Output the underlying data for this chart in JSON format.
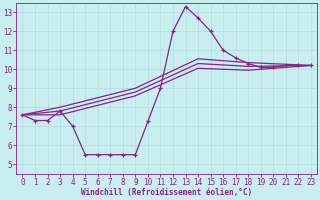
{
  "xlabel": "Windchill (Refroidissement éolien,°C)",
  "bg_color": "#c8eef0",
  "grid_color": "#b0dde0",
  "line_color": "#882288",
  "xlim": [
    -0.5,
    23.5
  ],
  "ylim": [
    4.5,
    13.5
  ],
  "xticks": [
    0,
    1,
    2,
    3,
    4,
    5,
    6,
    7,
    8,
    9,
    10,
    11,
    12,
    13,
    14,
    15,
    16,
    17,
    18,
    19,
    20,
    21,
    22,
    23
  ],
  "yticks": [
    5,
    6,
    7,
    8,
    9,
    10,
    11,
    12,
    13
  ],
  "line1_x": [
    0,
    1,
    2,
    3,
    4,
    5,
    6,
    7,
    8,
    9,
    10,
    11,
    12,
    13,
    14,
    15,
    16,
    17,
    18,
    19,
    20,
    21,
    22,
    23
  ],
  "line1_y": [
    7.6,
    7.3,
    7.3,
    7.8,
    7.0,
    5.5,
    5.5,
    5.5,
    5.5,
    5.5,
    7.25,
    9.0,
    12.0,
    13.3,
    12.7,
    12.0,
    11.0,
    10.6,
    10.3,
    10.1,
    10.1,
    10.2,
    10.2,
    10.2
  ],
  "line2_x": [
    0,
    3,
    9,
    14,
    18,
    23
  ],
  "line2_y": [
    7.6,
    8.0,
    9.0,
    10.55,
    10.35,
    10.2
  ],
  "line3_x": [
    0,
    3,
    9,
    14,
    18,
    23
  ],
  "line3_y": [
    7.6,
    7.8,
    8.8,
    10.3,
    10.15,
    10.2
  ],
  "line4_x": [
    0,
    3,
    9,
    14,
    18,
    23
  ],
  "line4_y": [
    7.6,
    7.6,
    8.6,
    10.05,
    9.95,
    10.2
  ]
}
